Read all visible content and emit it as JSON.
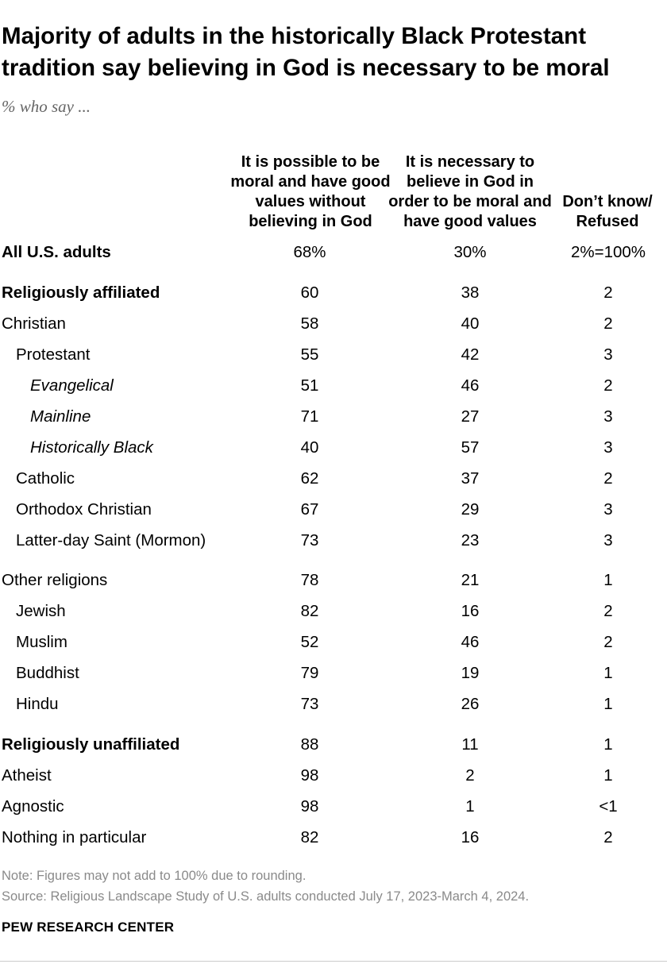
{
  "header": {
    "title": "Majority of adults in the historically Black Protestant tradition say believing in God is necessary to be moral",
    "subtitle": "% who say ..."
  },
  "table": {
    "columns": [
      "It is possible to be moral and have good values without believing in God",
      "It is necessary to believe in God in order to be moral and have good values",
      "Don’t know/ Refused"
    ],
    "rows": [
      [
        "All U.S. adults",
        "68%",
        "30%",
        "2%=100%"
      ],
      [
        "Religiously affiliated",
        "60",
        "38",
        "2"
      ],
      [
        "Christian",
        "58",
        "40",
        "2"
      ],
      [
        "Protestant",
        "55",
        "42",
        "3"
      ],
      [
        "Evangelical",
        "51",
        "46",
        "2"
      ],
      [
        "Mainline",
        "71",
        "27",
        "3"
      ],
      [
        "Historically Black",
        "40",
        "57",
        "3"
      ],
      [
        "Catholic",
        "62",
        "37",
        "2"
      ],
      [
        "Orthodox Christian",
        "67",
        "29",
        "3"
      ],
      [
        "Latter-day Saint (Mormon)",
        "73",
        "23",
        "3"
      ],
      [
        "Other religions",
        "78",
        "21",
        "1"
      ],
      [
        "Jewish",
        "82",
        "16",
        "2"
      ],
      [
        "Muslim",
        "52",
        "46",
        "2"
      ],
      [
        "Buddhist",
        "79",
        "19",
        "1"
      ],
      [
        "Hindu",
        "73",
        "26",
        "1"
      ],
      [
        "Religiously unaffiliated",
        "88",
        "11",
        "1"
      ],
      [
        "Atheist",
        "98",
        "2",
        "1"
      ],
      [
        "Agnostic",
        "98",
        "1",
        "<1"
      ],
      [
        "Nothing in particular",
        "82",
        "16",
        "2"
      ]
    ]
  },
  "footer": {
    "note": "Note: Figures may not add to 100% due to rounding.",
    "source": "Source: Religious Landscape Study of U.S. adults conducted July 17, 2023-March 4, 2024.",
    "brand": "PEW RESEARCH CENTER"
  }
}
